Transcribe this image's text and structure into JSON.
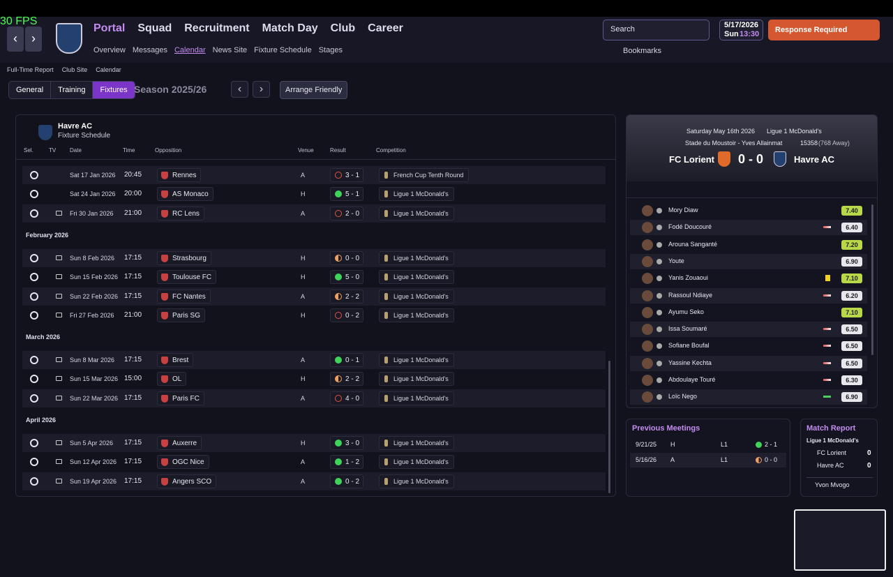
{
  "fps": "30 FPS",
  "nav": {
    "items": [
      "Portal",
      "Squad",
      "Recruitment",
      "Match Day",
      "Club",
      "Career"
    ],
    "sub": [
      "Overview",
      "Messages",
      "Calendar",
      "News Site",
      "Fixture Schedule",
      "Stages"
    ]
  },
  "toolbar": {
    "search": "Search",
    "date": "5/17/2026",
    "day": "Sun",
    "time": "13:30",
    "response": "Response Required",
    "bookmarks": "Bookmarks"
  },
  "breadcrumb": [
    "Full-Time Report",
    "Club Site",
    "Calendar"
  ],
  "tabs": [
    "General",
    "Training",
    "Fixtures"
  ],
  "season": "Season 2025/26",
  "arrange": "Arrange Friendly",
  "schedule": {
    "team": "Havre AC",
    "subtitle": "Fixture Schedule",
    "columns": [
      "Sel.",
      "TV",
      "Date",
      "Time",
      "Opposition",
      "Venue",
      "Result",
      "Competition"
    ],
    "groups": [
      {
        "rows": [
          {
            "date": "Sat 17 Jan 2026",
            "time": "20:45",
            "opponent": "Rennes",
            "venue": "A",
            "result": "3 - 1",
            "competition": "French Cup Tenth Round",
            "outcome": "loss",
            "tv": false
          },
          {
            "date": "Sat 24 Jan 2026",
            "time": "20:00",
            "opponent": "AS Monaco",
            "venue": "H",
            "result": "5 - 1",
            "competition": "Ligue 1 McDonald's",
            "outcome": "win",
            "tv": false
          },
          {
            "date": "Fri 30 Jan 2026",
            "time": "21:00",
            "opponent": "RC Lens",
            "venue": "A",
            "result": "2 - 0",
            "competition": "Ligue 1 McDonald's",
            "outcome": "loss",
            "tv": true
          }
        ]
      },
      {
        "month": "February 2026",
        "rows": [
          {
            "date": "Sun 8 Feb 2026",
            "time": "17:15",
            "opponent": "Strasbourg",
            "venue": "H",
            "result": "0 - 0",
            "competition": "Ligue 1 McDonald's",
            "outcome": "draw",
            "tv": true
          },
          {
            "date": "Sun 15 Feb 2026",
            "time": "17:15",
            "opponent": "Toulouse FC",
            "venue": "H",
            "result": "5 - 0",
            "competition": "Ligue 1 McDonald's",
            "outcome": "win",
            "tv": true
          },
          {
            "date": "Sun 22 Feb 2026",
            "time": "17:15",
            "opponent": "FC Nantes",
            "venue": "A",
            "result": "2 - 2",
            "competition": "Ligue 1 McDonald's",
            "outcome": "draw",
            "tv": true
          },
          {
            "date": "Fri 27 Feb 2026",
            "time": "21:00",
            "opponent": "Paris SG",
            "venue": "H",
            "result": "0 - 2",
            "competition": "Ligue 1 McDonald's",
            "outcome": "loss",
            "tv": true
          }
        ]
      },
      {
        "month": "March 2026",
        "rows": [
          {
            "date": "Sun 8 Mar 2026",
            "time": "17:15",
            "opponent": "Brest",
            "venue": "A",
            "result": "0 - 1",
            "competition": "Ligue 1 McDonald's",
            "outcome": "win",
            "tv": true
          },
          {
            "date": "Sun 15 Mar 2026",
            "time": "15:00",
            "opponent": "OL",
            "venue": "H",
            "result": "2 - 2",
            "competition": "Ligue 1 McDonald's",
            "outcome": "draw",
            "tv": true
          },
          {
            "date": "Sun 22 Mar 2026",
            "time": "17:15",
            "opponent": "Paris FC",
            "venue": "A",
            "result": "4 - 0",
            "competition": "Ligue 1 McDonald's",
            "outcome": "loss",
            "tv": true
          }
        ]
      },
      {
        "month": "April 2026",
        "rows": [
          {
            "date": "Sun 5 Apr 2026",
            "time": "17:15",
            "opponent": "Auxerre",
            "venue": "H",
            "result": "3 - 0",
            "competition": "Ligue 1 McDonald's",
            "outcome": "win",
            "tv": true
          },
          {
            "date": "Sun 12 Apr 2026",
            "time": "17:15",
            "opponent": "OGC Nice",
            "venue": "A",
            "result": "1 - 2",
            "competition": "Ligue 1 McDonald's",
            "outcome": "win",
            "tv": true
          },
          {
            "date": "Sun 19 Apr 2026",
            "time": "17:15",
            "opponent": "Angers SCO",
            "venue": "A",
            "result": "0 - 2",
            "competition": "Ligue 1 McDonald's",
            "outcome": "win",
            "tv": true
          }
        ]
      }
    ]
  },
  "match": {
    "date": "Saturday May 16th 2026",
    "competition": "Ligue 1 McDonald's",
    "stadium": "Stade du Moustoir - Yves Allainmat",
    "attendance": "15358",
    "away": "(768 Away)",
    "home": "FC Lorient",
    "score": "0 - 0",
    "visitor": "Havre AC",
    "players": [
      {
        "name": "Mory Diaw",
        "rating": "7.40"
      },
      {
        "name": "Fodé Doucouré",
        "rating": "6.40",
        "event": "sub"
      },
      {
        "name": "Arouna Sanganté",
        "rating": "7.20"
      },
      {
        "name": "Youte",
        "rating": "6.90"
      },
      {
        "name": "Yanis Zouaoui",
        "rating": "7.10",
        "event": "yellow"
      },
      {
        "name": "Rassoul Ndiaye",
        "rating": "6.20",
        "event": "sub"
      },
      {
        "name": "Ayumu Seko",
        "rating": "7.10"
      },
      {
        "name": "Issa Soumaré",
        "rating": "6.50",
        "event": "sub"
      },
      {
        "name": "Sofiane Boufal",
        "rating": "6.50",
        "event": "sub"
      },
      {
        "name": "Yassine Kechta",
        "rating": "6.50",
        "event": "sub"
      },
      {
        "name": "Abdoulaye Touré",
        "rating": "6.30",
        "event": "sub"
      },
      {
        "name": "Loïc Nego",
        "rating": "6.90",
        "event": "subin"
      }
    ]
  },
  "previous": {
    "title": "Previous Meetings",
    "rows": [
      {
        "date": "9/21/25",
        "venue": "H",
        "comp": "L1",
        "score": "2 - 1",
        "outcome": "win"
      },
      {
        "date": "5/16/26",
        "venue": "A",
        "comp": "L1",
        "score": "0 - 0",
        "outcome": "draw"
      }
    ]
  },
  "report": {
    "title": "Match Report",
    "competition": "Ligue 1 McDonald's",
    "teams": [
      {
        "name": "FC Lorient",
        "goals": "0"
      },
      {
        "name": "Havre AC",
        "goals": "0"
      }
    ],
    "motm": "Yvon Mvogo"
  }
}
